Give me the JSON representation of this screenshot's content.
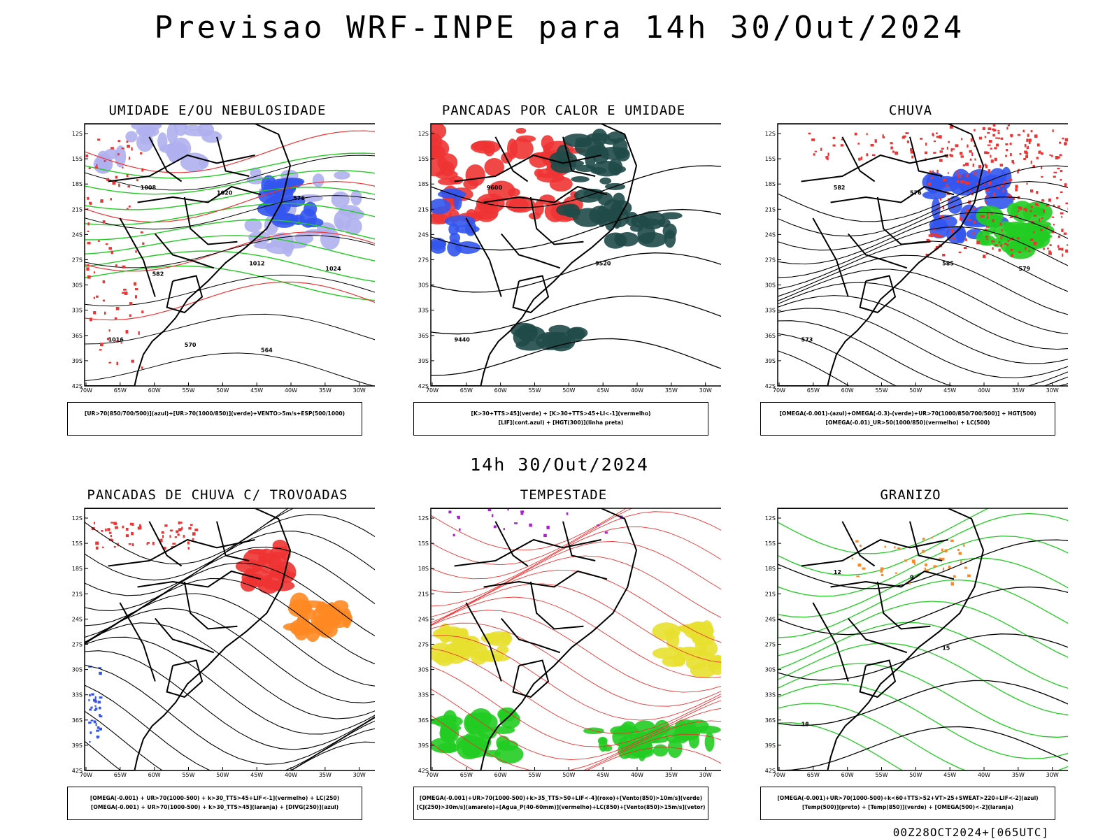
{
  "main_title": "Previsao WRF-INPE  para 14h 30/Out/2024",
  "mid_title": "14h 30/Out/2024",
  "footer": "00Z28OCT2024+[065UTC]",
  "lat_labels": [
    "12S",
    "15S",
    "18S",
    "21S",
    "24S",
    "27S",
    "30S",
    "33S",
    "36S",
    "39S",
    "42S"
  ],
  "lon_labels": [
    "70W",
    "65W",
    "60W",
    "55W",
    "50W",
    "45W",
    "40W",
    "35W",
    "30W"
  ],
  "colors": {
    "blue": "#3355ee",
    "light_blue": "#b0b0f0",
    "green": "#22cc22",
    "red": "#ee3333",
    "dark_teal": "#1f4a48",
    "orange": "#ff8822",
    "yellow": "#e8e030"
  },
  "panels": [
    {
      "title": "UMIDADE E/OU NEBULOSIDADE",
      "legend": [
        "[UR>70(850/700/500)](azul)+[UR>70(1000/850)](verde)+VENTO>5m/s+ESP(500/1000)"
      ],
      "labels": [
        "1008",
        "1012",
        "1016",
        "1020",
        "1024",
        "570",
        "576",
        "582",
        "564"
      ]
    },
    {
      "title": "PANCADAS POR CALOR E UMIDADE",
      "legend": [
        "[K>30+TTS>45](verde) + [K>30+TTS>45+LI<-1](vermelho)",
        "[LIF](cont.azul) + [HGT(300)](linha preta)"
      ],
      "labels": [
        "9600",
        "9520",
        "9440"
      ]
    },
    {
      "title": "CHUVA",
      "legend": [
        "[OMEGA(-0.001)-(azul)+OMEGA(-0.3)-(verde)+UR>70(1000/850/700/500)] + HGT(500)",
        "[OMEGA(-0.01)_UR>50(1000/850)(vermelho) + LC(500)"
      ],
      "labels": [
        "582",
        "585",
        "573",
        "576",
        "579"
      ]
    },
    {
      "title": "PANCADAS DE CHUVA C/ TROVOADAS",
      "legend": [
        "[OMEGA(-0.001) + UR>70(1000-500) + k>30_TTS>45+LIF<-1](vermelho) + LC(250)",
        "[OMEGA(-0.001) + UR>70(1000-500) + k>30_TTS>45](laranja) + [DIVG(250)](azul)"
      ],
      "labels": []
    },
    {
      "title": "TEMPESTADE",
      "legend": [
        "[OMEGA(-0.001)+UR>70(1000-500)+k>35_TTS>50+LIF<-4](roxo)+[Vento(850)>10m/s](verde)",
        "[CJ(250)>30m/s](amarelo)+[Agua_P(40-60mm)](vermelho)+LC(850)+[Vento(850)>15m/s](vetor)"
      ],
      "labels": []
    },
    {
      "title": "GRANIZO",
      "legend": [
        "[OMEGA(-0.001)+UR>70(1000-500)+k<60+TTS>52+VT>25+SWEAT>220+LIF<-2](azul)",
        "[Temp(500)](preto) + [Temp(850)](verde) + [OMEGA(500)<-2](laranja)"
      ],
      "labels": [
        "12",
        "15",
        "18",
        "9"
      ]
    }
  ]
}
